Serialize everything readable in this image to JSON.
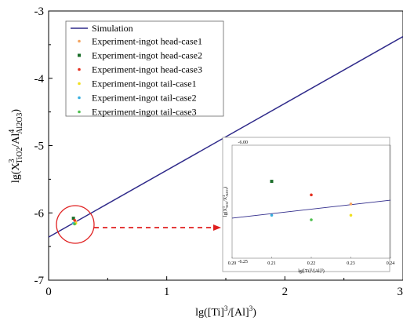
{
  "chart_data": {
    "type": "scatter",
    "title": "",
    "xlabel_parts": [
      "lg([Ti]",
      "3",
      "/[Al]",
      "3",
      ")"
    ],
    "ylabel_parts": [
      "lg(X",
      "3",
      "TiO2",
      "/Al",
      "4",
      "Al2O3",
      ")"
    ],
    "xlim": [
      0,
      3
    ],
    "ylim": [
      -7,
      -3
    ],
    "xticks": [
      "0",
      "1",
      "2",
      "3"
    ],
    "yticks": [
      "-7",
      "-6",
      "-5",
      "-4",
      "-3"
    ],
    "grid": false,
    "legend_position": "top-left",
    "simulation": {
      "name": "Simulation",
      "color": "#2f2a8a",
      "x": [
        0,
        3
      ],
      "y": [
        -6.36,
        -3.38
      ]
    },
    "series": [
      {
        "name": "Experiment-ingot head-case1",
        "color": "#f4a460",
        "marker": "dot",
        "x": [
          0.23
        ],
        "y": [
          -6.13
        ]
      },
      {
        "name": "Experiment-ingot head-case2",
        "color": "#1b6e2a",
        "marker": "square",
        "x": [
          0.21
        ],
        "y": [
          -6.08
        ]
      },
      {
        "name": "Experiment-ingot head-case3",
        "color": "#e53020",
        "marker": "dot",
        "x": [
          0.22
        ],
        "y": [
          -6.11
        ]
      },
      {
        "name": "Experiment-ingot tail-case1",
        "color": "#f0e020",
        "marker": "dot",
        "x": [
          0.23
        ],
        "y": [
          -6.155
        ]
      },
      {
        "name": "Experiment-ingot tail-case2",
        "color": "#3ab0e0",
        "marker": "dot",
        "x": [
          0.21
        ],
        "y": [
          -6.155
        ]
      },
      {
        "name": "Experiment-ingot tail-case3",
        "color": "#50c050",
        "marker": "dot",
        "x": [
          0.22
        ],
        "y": [
          -6.165
        ]
      }
    ],
    "inset": {
      "xlim": [
        0.2,
        0.24
      ],
      "ylim": [
        -6.25,
        -6.0
      ],
      "xticks": [
        "0.20",
        "0.21",
        "0.22",
        "0.23",
        "0.24"
      ],
      "yticks": [
        "-6.00",
        "-6.25"
      ],
      "xlabel_parts": [
        "lg([Ti]",
        "3",
        "/[Al]",
        "3",
        ")"
      ],
      "ylabel_parts": [
        "lg(X",
        "3",
        "TiO2",
        "/X",
        "4",
        "Al2O3",
        ")"
      ]
    },
    "highlight_color": "#e02020"
  }
}
